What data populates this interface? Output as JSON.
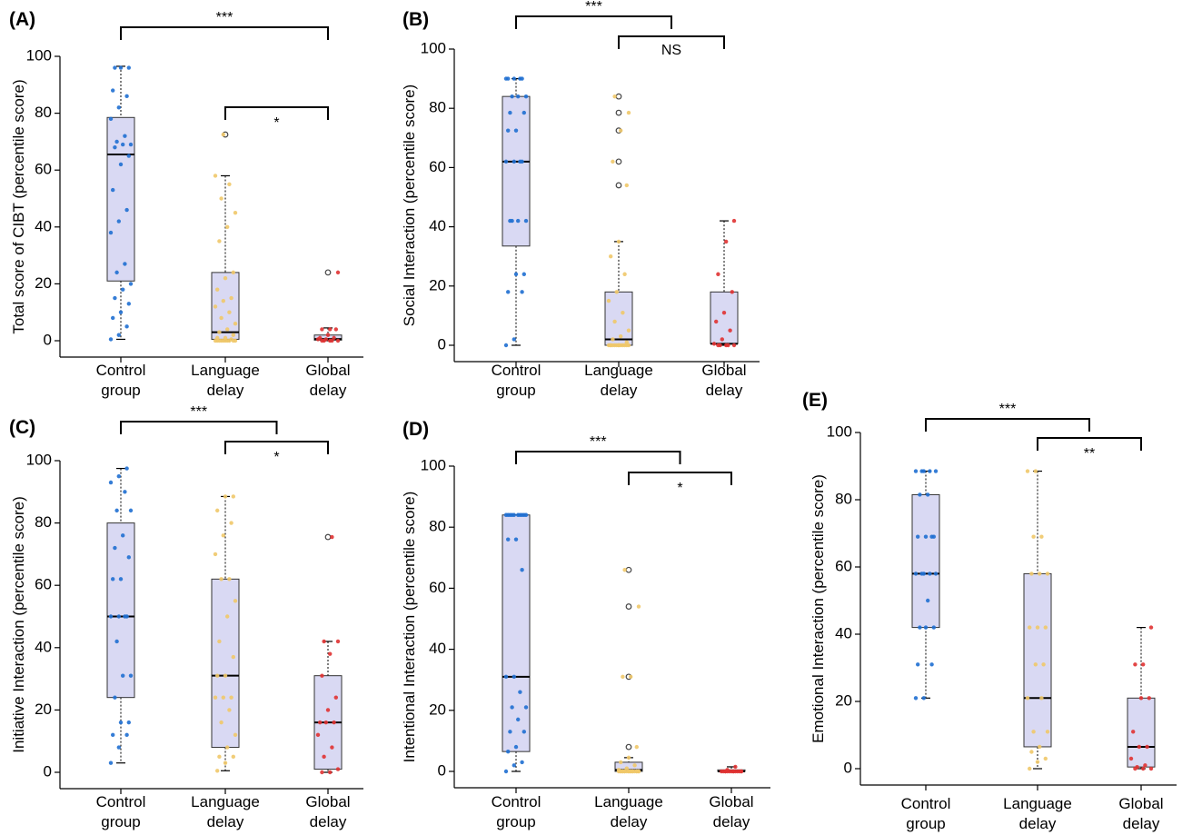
{
  "colors": {
    "box_fill": "#d9d9f3",
    "control": "#1f6fd1",
    "language": "#f0c869",
    "global": "#e03232"
  },
  "chart_data": [
    {
      "panel": "(A)",
      "type": "box",
      "ylabel": "Total score of CIBT (percentile score)",
      "categories": [
        "Control\ngroup",
        "Language\ndelay",
        "Global\ndelay"
      ],
      "ylim": [
        0,
        100
      ],
      "yticks": [
        0,
        20,
        40,
        60,
        80,
        100
      ],
      "boxes": [
        {
          "min": 0.5,
          "q1": 21,
          "median": 65.5,
          "q3": 78.5,
          "max": 96.5
        },
        {
          "min": 0,
          "q1": 0.5,
          "median": 3,
          "q3": 24,
          "max": 58,
          "outliers": [
            72.5
          ]
        },
        {
          "min": 0,
          "q1": 0.2,
          "median": 0.6,
          "q3": 2,
          "max": 4.5,
          "outliers": [
            24
          ]
        }
      ],
      "points": [
        [
          0.5,
          2,
          5,
          8,
          10,
          13,
          15,
          18,
          20,
          24,
          27,
          38,
          42,
          46,
          53,
          62,
          65,
          68,
          69,
          69,
          70,
          72,
          78,
          82,
          86,
          88,
          96,
          96,
          96
        ],
        [
          0,
          0,
          0,
          0,
          0,
          0,
          0,
          0,
          0,
          0,
          0.5,
          1,
          1,
          2,
          3,
          4,
          6,
          8,
          10,
          12,
          14,
          15,
          18,
          22,
          24,
          35,
          40,
          45,
          50,
          55,
          58,
          72.5
        ],
        [
          0,
          0,
          0,
          0,
          0,
          0.5,
          0.5,
          1,
          1,
          2,
          4,
          4,
          4,
          24
        ]
      ],
      "brackets": [
        {
          "from": 0,
          "to": 2,
          "label": "***"
        },
        {
          "from": 1,
          "to": 2,
          "label": "*"
        }
      ]
    },
    {
      "panel": "(B)",
      "type": "box",
      "ylabel": "Social Interaction (percentile score)",
      "categories": [
        "Control\ngroup",
        "Language\ndelay",
        "Global\ndelay"
      ],
      "ylim": [
        0,
        100
      ],
      "yticks": [
        0,
        20,
        40,
        60,
        80,
        100
      ],
      "boxes": [
        {
          "min": 0,
          "q1": 33.5,
          "median": 62,
          "q3": 84,
          "max": 90
        },
        {
          "min": 0,
          "q1": 0,
          "median": 2,
          "q3": 18,
          "max": 35,
          "outliers": [
            54,
            62,
            72.5,
            78.5,
            84
          ]
        },
        {
          "min": 0,
          "q1": 0.5,
          "median": 0.5,
          "q3": 18,
          "max": 42
        }
      ],
      "points": [
        [
          0,
          2,
          18,
          18,
          24,
          24,
          42,
          42,
          42,
          42,
          62,
          62,
          62,
          62,
          72.5,
          72.5,
          78.5,
          78.5,
          84,
          84,
          84,
          90,
          90,
          90,
          90,
          90
        ],
        [
          0,
          0,
          0,
          0,
          0,
          0,
          0,
          0,
          0,
          0,
          0,
          0,
          0,
          1,
          2,
          3,
          5,
          8,
          11,
          15,
          18,
          24,
          30,
          35,
          54,
          62,
          72.5,
          78.5,
          84
        ],
        [
          0,
          0,
          0,
          0,
          0,
          0.5,
          2,
          5,
          8,
          11,
          18,
          24,
          35,
          42
        ]
      ],
      "brackets": [
        {
          "from": 0,
          "to": 1.5,
          "label": "***"
        },
        {
          "from": 1,
          "to": 2,
          "label": "NS"
        }
      ]
    },
    {
      "panel": "(C)",
      "type": "box",
      "ylabel": "Initiative Interaction (percentile score)",
      "categories": [
        "Control\ngroup",
        "Language\ndelay",
        "Global\ndelay"
      ],
      "ylim": [
        0,
        100
      ],
      "yticks": [
        0,
        20,
        40,
        60,
        80,
        100
      ],
      "boxes": [
        {
          "min": 3,
          "q1": 24,
          "median": 50,
          "q3": 80,
          "max": 97.5
        },
        {
          "min": 0.5,
          "q1": 8,
          "median": 31,
          "q3": 62,
          "max": 88.5
        },
        {
          "min": 0,
          "q1": 1,
          "median": 16,
          "q3": 31,
          "max": 42,
          "outliers": [
            75.5
          ]
        }
      ],
      "points": [
        [
          3,
          8,
          12,
          12,
          16,
          16,
          24,
          31,
          31,
          42,
          50,
          50,
          50,
          50,
          62,
          62,
          69,
          72,
          76,
          84,
          84,
          90,
          93,
          95,
          97.5
        ],
        [
          0.5,
          3,
          5,
          5,
          8,
          12,
          16,
          20,
          24,
          24,
          24,
          31,
          31,
          37,
          42,
          50,
          55,
          62,
          62,
          70,
          76,
          80,
          84,
          88.5,
          88.5
        ],
        [
          0,
          0,
          1,
          5,
          8,
          12,
          16,
          16,
          16,
          20,
          24,
          31,
          38,
          42,
          42,
          75.5
        ]
      ],
      "brackets": [
        {
          "from": 0,
          "to": 1.5,
          "label": "***"
        },
        {
          "from": 1,
          "to": 2,
          "label": "*"
        }
      ]
    },
    {
      "panel": "(D)",
      "type": "box",
      "ylabel": "Intentional Interaction (percentile score)",
      "categories": [
        "Control\ngroup",
        "Language\ndelay",
        "Global\ndelay"
      ],
      "ylim": [
        0,
        100
      ],
      "yticks": [
        0,
        20,
        40,
        60,
        80,
        100
      ],
      "boxes": [
        {
          "min": 0,
          "q1": 6.5,
          "median": 31,
          "q3": 84,
          "max": 84
        },
        {
          "min": 0,
          "q1": 0,
          "median": 0.5,
          "q3": 3,
          "max": 4.5,
          "outliers": [
            8,
            31,
            54,
            66
          ]
        },
        {
          "min": 0,
          "q1": 0,
          "median": 0,
          "q3": 0.5,
          "max": 1.5
        }
      ],
      "points": [
        [
          0,
          2,
          3,
          6.5,
          8,
          13,
          13,
          17,
          21,
          21,
          26,
          31,
          31,
          66,
          76,
          76,
          84,
          84,
          84,
          84,
          84,
          84,
          84,
          84,
          84,
          84
        ],
        [
          0,
          0,
          0,
          0,
          0,
          0,
          0,
          0,
          0,
          0,
          0,
          0,
          0,
          0,
          0,
          0,
          0,
          0,
          0,
          0.5,
          1,
          2,
          3,
          4.5,
          8,
          31,
          31,
          54,
          66
        ],
        [
          0,
          0,
          0,
          0,
          0,
          0,
          0,
          0,
          0,
          0,
          0,
          0,
          0,
          0,
          0.5,
          1.5
        ]
      ],
      "brackets": [
        {
          "from": 0,
          "to": 1.5,
          "label": "***"
        },
        {
          "from": 1,
          "to": 2,
          "label": "*"
        }
      ]
    },
    {
      "panel": "(E)",
      "type": "box",
      "ylabel": "Emotional Interaction (percentile score)",
      "categories": [
        "Control\ngroup",
        "Language\ndelay",
        "Global\ndelay"
      ],
      "ylim": [
        0,
        100
      ],
      "yticks": [
        0,
        20,
        40,
        60,
        80,
        100
      ],
      "boxes": [
        {
          "min": 21,
          "q1": 42,
          "median": 58,
          "q3": 81.5,
          "max": 88.5
        },
        {
          "min": 0,
          "q1": 6.5,
          "median": 21,
          "q3": 58,
          "max": 88.5
        },
        {
          "min": 0,
          "q1": 0.5,
          "median": 6.5,
          "q3": 21,
          "max": 42
        }
      ],
      "points": [
        [
          21,
          21,
          31,
          31,
          42,
          42,
          42,
          50,
          58,
          58,
          58,
          58,
          58,
          69,
          69,
          69,
          69,
          81.5,
          81.5,
          88.5,
          88.5,
          88.5,
          88.5,
          88.5
        ],
        [
          0,
          2,
          3,
          5,
          6.5,
          11,
          11,
          21,
          21,
          31,
          31,
          42,
          42,
          42,
          58,
          58,
          58,
          69,
          69,
          88.5,
          88.5
        ],
        [
          0,
          0,
          0,
          0.5,
          1,
          3,
          6.5,
          6.5,
          11,
          21,
          21,
          31,
          31,
          42
        ]
      ],
      "brackets": [
        {
          "from": 0,
          "to": 1.5,
          "label": "***"
        },
        {
          "from": 1,
          "to": 2,
          "label": "**"
        }
      ]
    }
  ]
}
